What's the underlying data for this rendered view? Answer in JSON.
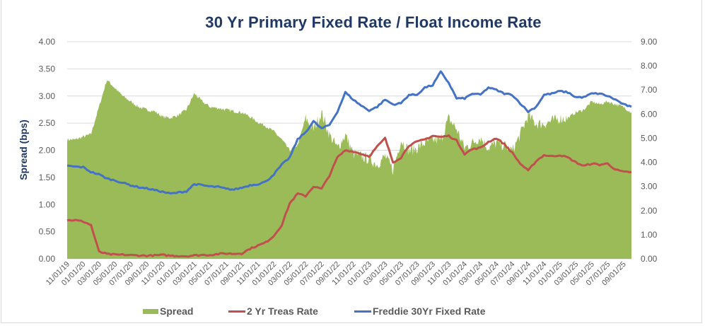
{
  "chart_data": {
    "type": "area",
    "title": "30 Yr Primary Fixed Rate / Float Income Rate",
    "xlabel": "",
    "ylabel": "Spread (bps)",
    "y2label": "",
    "ylim": [
      0,
      4
    ],
    "y2lim": [
      0,
      9
    ],
    "yticks": [
      "0.00",
      "0.50",
      "1.00",
      "1.50",
      "2.00",
      "2.50",
      "3.00",
      "3.50",
      "4.00"
    ],
    "y2ticks": [
      "0.00",
      "1.00",
      "2.00",
      "3.00",
      "4.00",
      "5.00",
      "6.00",
      "7.00",
      "8.00",
      "9.00"
    ],
    "xticks": [
      "11/01/19",
      "01/01/20",
      "03/01/20",
      "05/01/20",
      "07/01/20",
      "09/01/20",
      "11/01/20",
      "01/01/21",
      "03/01/21",
      "05/01/21",
      "07/01/21",
      "09/01/21",
      "11/01/21",
      "01/01/22",
      "03/01/22",
      "05/01/22",
      "07/01/22",
      "09/01/22",
      "11/01/22",
      "01/01/23",
      "03/01/23",
      "05/01/23",
      "07/01/23",
      "09/01/23",
      "11/01/23",
      "01/01/24",
      "03/01/24",
      "05/01/24",
      "07/01/24",
      "09/01/24",
      "11/01/24",
      "01/01/25",
      "03/01/25",
      "05/01/25",
      "07/01/25",
      "09/01/25"
    ],
    "grid": true,
    "legend_position": "bottom",
    "x_months": [
      "2019-11",
      "2019-12",
      "2020-01",
      "2020-02",
      "2020-03",
      "2020-04",
      "2020-05",
      "2020-06",
      "2020-07",
      "2020-08",
      "2020-09",
      "2020-10",
      "2020-11",
      "2020-12",
      "2021-01",
      "2021-02",
      "2021-03",
      "2021-04",
      "2021-05",
      "2021-06",
      "2021-07",
      "2021-08",
      "2021-09",
      "2021-10",
      "2021-11",
      "2021-12",
      "2022-01",
      "2022-02",
      "2022-03",
      "2022-04",
      "2022-05",
      "2022-06",
      "2022-07",
      "2022-08",
      "2022-09",
      "2022-10",
      "2022-11",
      "2022-12",
      "2023-01",
      "2023-02",
      "2023-03",
      "2023-04",
      "2023-05",
      "2023-06",
      "2023-07",
      "2023-08",
      "2023-09",
      "2023-10",
      "2023-11",
      "2023-12",
      "2024-01",
      "2024-02",
      "2024-03",
      "2024-04",
      "2024-05",
      "2024-06",
      "2024-07",
      "2024-08",
      "2024-09",
      "2024-10",
      "2024-11",
      "2024-12",
      "2025-01",
      "2025-02",
      "2025-03",
      "2025-04",
      "2025-05",
      "2025-06",
      "2025-07",
      "2025-08",
      "2025-09",
      "2025-10"
    ],
    "series": [
      {
        "name": "Spread",
        "axis": "left",
        "kind": "area",
        "color": "#9bbb59",
        "values": [
          2.2,
          2.2,
          2.25,
          2.3,
          2.8,
          3.3,
          3.15,
          3.0,
          2.9,
          2.8,
          2.75,
          2.72,
          2.62,
          2.6,
          2.65,
          2.75,
          3.05,
          2.9,
          2.8,
          2.78,
          2.75,
          2.72,
          2.7,
          2.62,
          2.52,
          2.45,
          2.35,
          2.2,
          2.0,
          2.1,
          2.6,
          2.4,
          2.7,
          2.3,
          2.05,
          2.3,
          1.95,
          1.9,
          1.85,
          1.75,
          1.9,
          1.65,
          2.2,
          2.0,
          2.05,
          2.15,
          2.2,
          2.2,
          2.6,
          2.4,
          2.05,
          2.15,
          2.25,
          2.05,
          2.15,
          2.1,
          2.0,
          2.3,
          2.65,
          2.5,
          2.5,
          2.55,
          2.6,
          2.6,
          2.7,
          2.75,
          2.9,
          2.85,
          2.9,
          2.85,
          2.8,
          2.7
        ]
      },
      {
        "name": "2 Yr Treas Rate",
        "axis": "right",
        "kind": "line",
        "color": "#c0504d",
        "values": [
          1.6,
          1.6,
          1.55,
          1.4,
          0.3,
          0.2,
          0.17,
          0.17,
          0.15,
          0.14,
          0.13,
          0.14,
          0.16,
          0.13,
          0.12,
          0.11,
          0.14,
          0.16,
          0.16,
          0.2,
          0.22,
          0.21,
          0.23,
          0.42,
          0.55,
          0.68,
          0.95,
          1.4,
          2.3,
          2.7,
          2.6,
          3.0,
          2.9,
          3.45,
          4.2,
          4.5,
          4.45,
          4.35,
          4.25,
          4.65,
          5.0,
          4.0,
          4.2,
          4.7,
          4.85,
          4.95,
          5.1,
          5.05,
          5.1,
          4.9,
          4.35,
          4.55,
          4.6,
          4.85,
          5.0,
          4.75,
          4.4,
          3.95,
          3.65,
          4.05,
          4.3,
          4.25,
          4.3,
          4.2,
          4.0,
          3.85,
          3.95,
          3.9,
          3.95,
          3.7,
          3.6,
          3.6
        ]
      },
      {
        "name": "Freddie 30Yr Fixed Rate",
        "axis": "right",
        "kind": "line",
        "color": "#4472c4",
        "values": [
          3.85,
          3.82,
          3.8,
          3.6,
          3.5,
          3.33,
          3.25,
          3.15,
          3.05,
          2.97,
          2.92,
          2.85,
          2.78,
          2.7,
          2.75,
          2.8,
          3.1,
          3.05,
          3.0,
          2.98,
          2.9,
          2.87,
          2.95,
          3.05,
          3.1,
          3.2,
          3.5,
          3.9,
          4.2,
          4.95,
          5.25,
          5.7,
          5.4,
          5.55,
          6.1,
          6.9,
          6.6,
          6.35,
          6.15,
          6.3,
          6.6,
          6.4,
          6.45,
          6.8,
          6.8,
          7.1,
          7.2,
          7.75,
          7.3,
          6.65,
          6.65,
          6.85,
          6.8,
          7.1,
          7.0,
          6.85,
          6.8,
          6.45,
          6.1,
          6.3,
          6.8,
          6.85,
          6.95,
          6.9,
          6.7,
          6.7,
          6.85,
          6.85,
          6.75,
          6.6,
          6.4,
          6.3
        ]
      }
    ]
  },
  "legend": {
    "spread": "Spread",
    "treas": "2 Yr Treas Rate",
    "freddie": "Freddie 30Yr Fixed Rate"
  }
}
